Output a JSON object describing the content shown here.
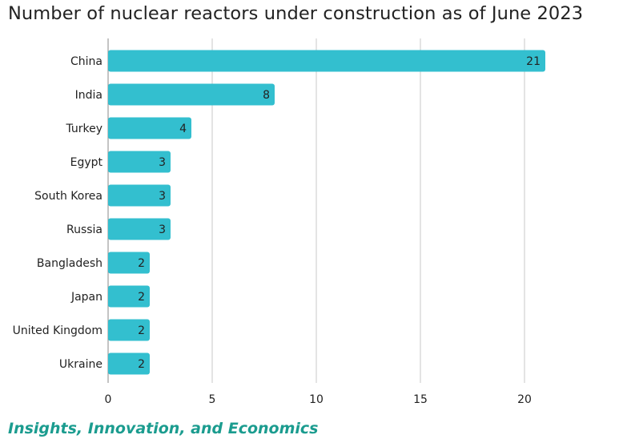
{
  "title": "Number of nuclear reactors under construction as of June 2023",
  "footer": "Insights, Innovation, and Economics",
  "colors": {
    "bar": "#33bfcf",
    "grid": "#c8c8c8",
    "text": "#222222",
    "footer": "#1b9c8f"
  },
  "chart_data": {
    "type": "bar",
    "orientation": "horizontal",
    "title": "Number of nuclear reactors under construction as of June 2023",
    "categories": [
      "China",
      "India",
      "Turkey",
      "Egypt",
      "South Korea",
      "Russia",
      "Bangladesh",
      "Japan",
      "United Kingdom",
      "Ukraine"
    ],
    "values": [
      21,
      8,
      4,
      3,
      3,
      3,
      2,
      2,
      2,
      2
    ],
    "xlim": [
      0,
      22
    ],
    "xticks": [
      0,
      5,
      10,
      15,
      20
    ],
    "grid": true,
    "data_labels": true
  }
}
